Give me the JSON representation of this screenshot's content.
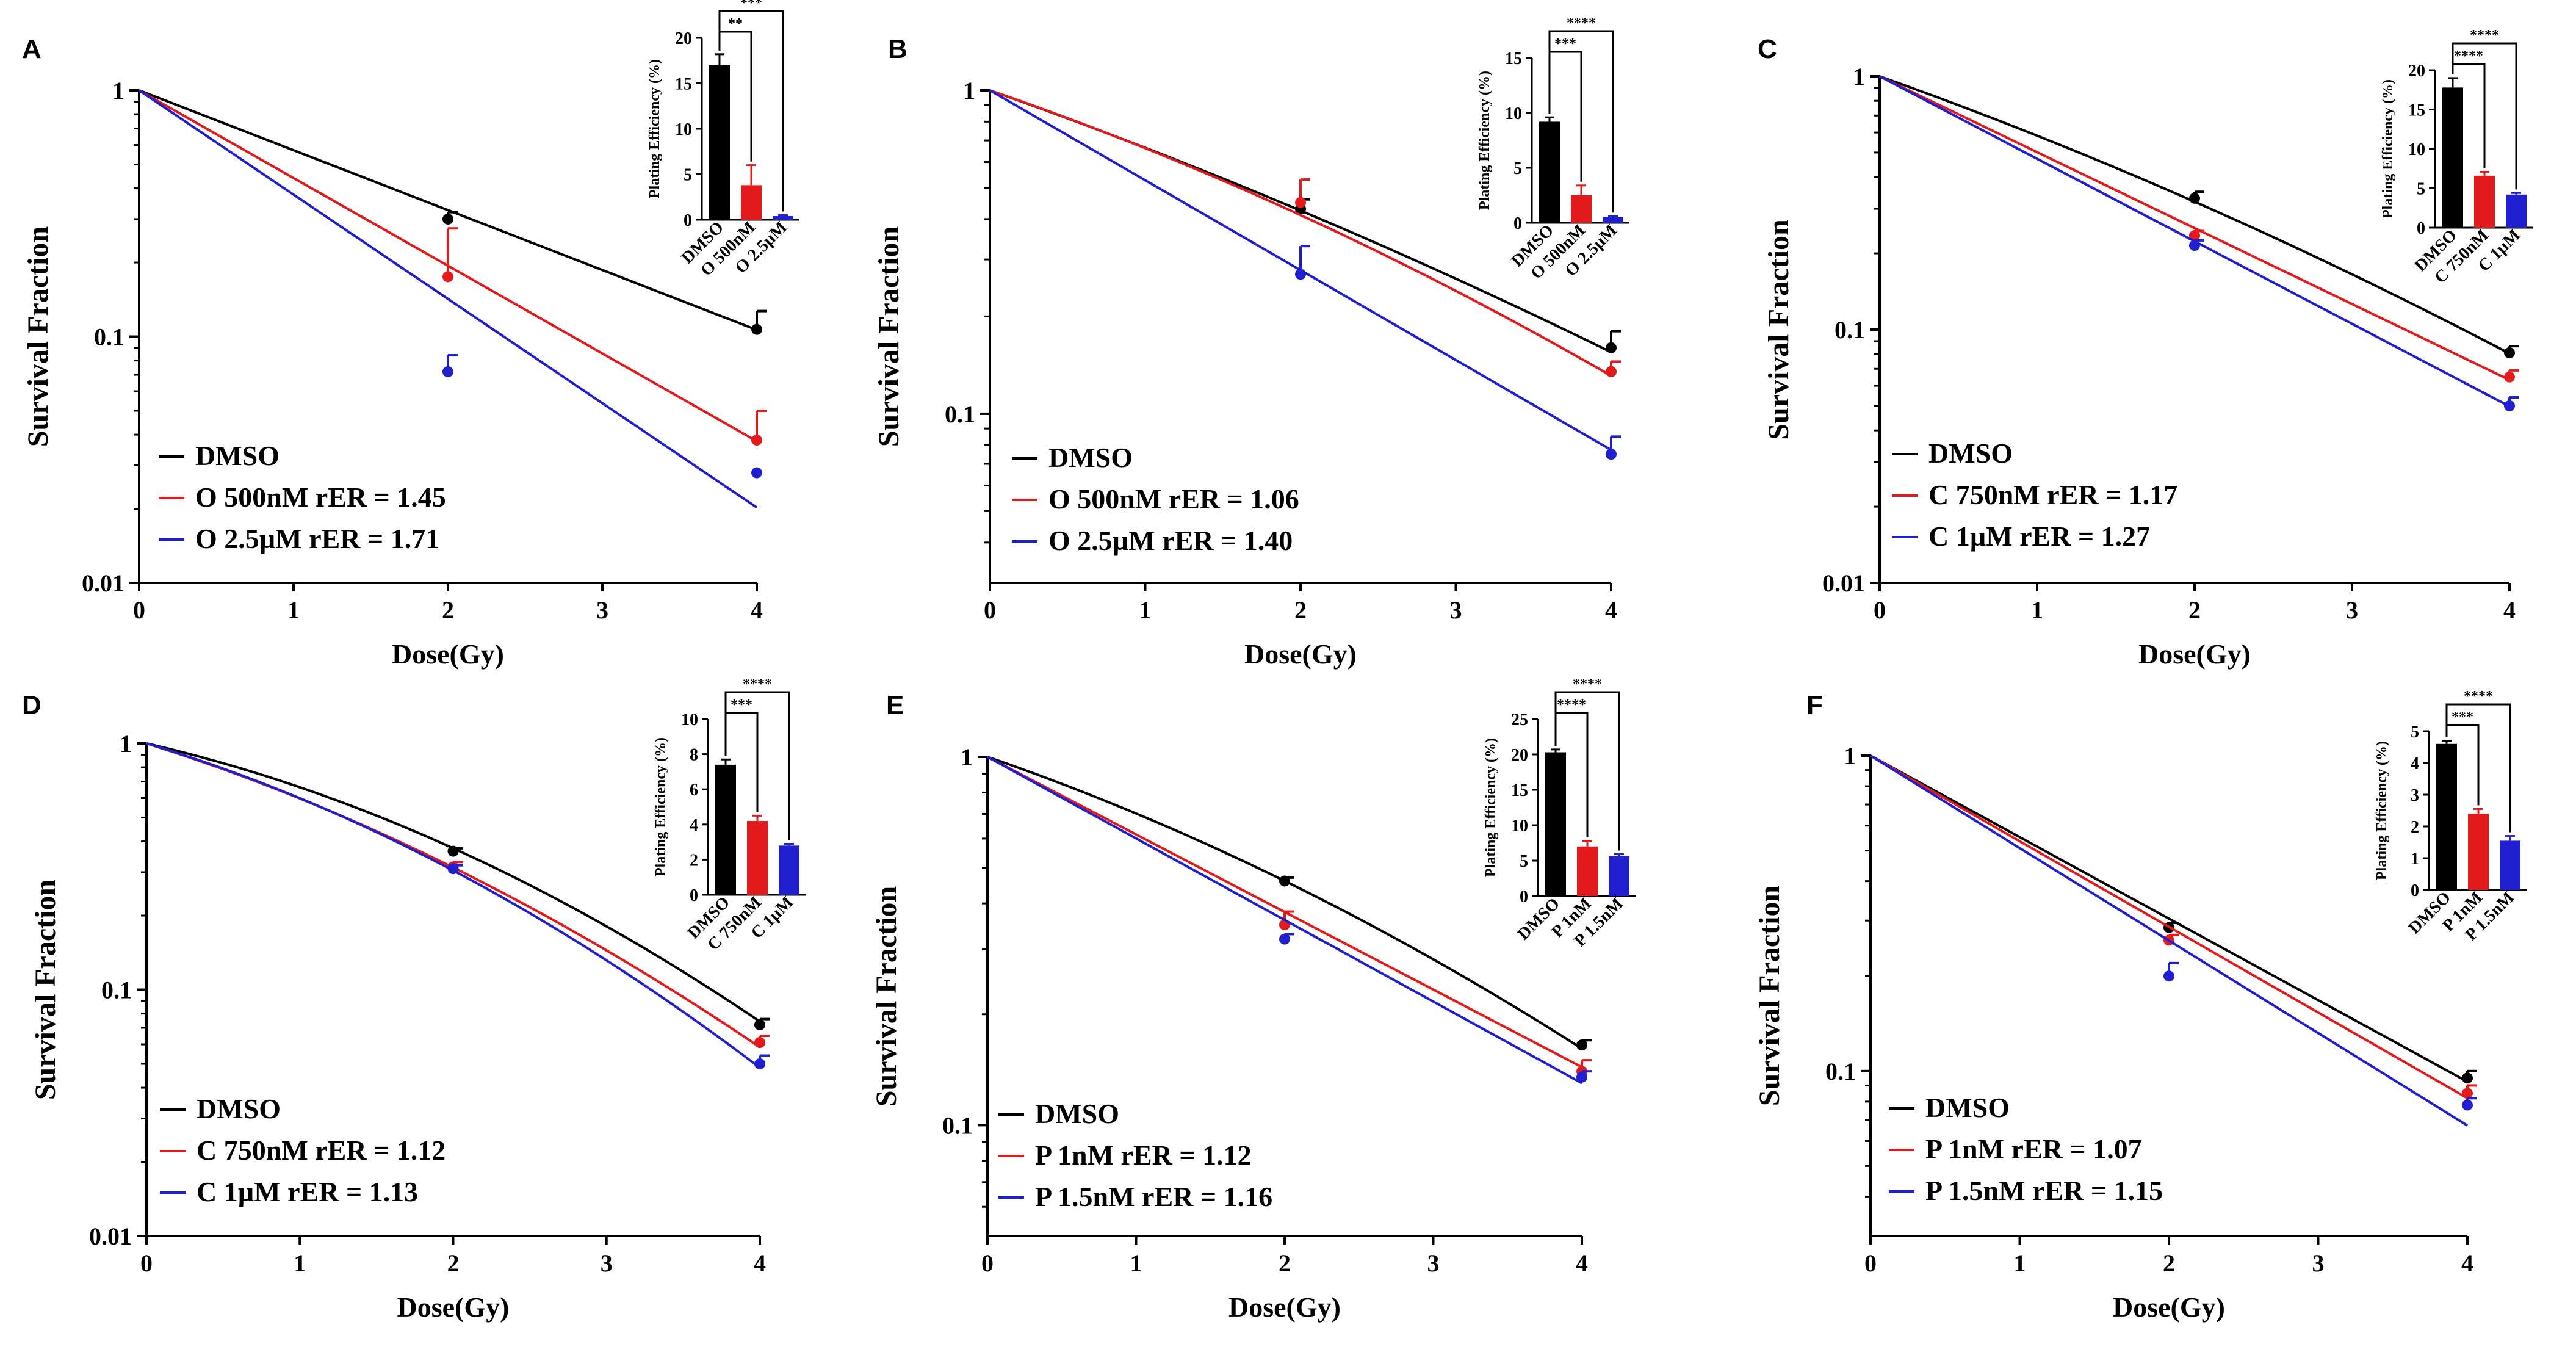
{
  "chart_data": [
    {
      "panel": "A",
      "type": "line",
      "yscale": "log",
      "xlabel": "Dose(Gy)",
      "ylabel": "Survival Fraction",
      "xlim": [
        0,
        4
      ],
      "ylim": [
        0.01,
        1
      ],
      "xticks": [
        0,
        1,
        2,
        3,
        4
      ],
      "xtick_labels": [
        "0",
        "1",
        "2",
        "3",
        "4"
      ],
      "yticks": [
        0.01,
        0.1,
        1
      ],
      "ytick_labels": [
        "0.01",
        "0.1",
        "1"
      ],
      "series": [
        {
          "name": "DMSO",
          "legend": "DMSO",
          "color": "#000000",
          "fit": {
            "alpha": 0.56,
            "beta": 0.0
          },
          "x": [
            0,
            2,
            4
          ],
          "y": [
            1,
            0.3,
            0.107
          ],
          "err": [
            0,
            0.02,
            0.02
          ]
        },
        {
          "name": "O 500nM",
          "legend": "O 500nM rER = 1.45",
          "color": "#e31a1c",
          "fit": {
            "alpha": 0.82,
            "beta": 0.0
          },
          "x": [
            0,
            2,
            4
          ],
          "y": [
            1,
            0.175,
            0.038
          ],
          "err": [
            0,
            0.1,
            0.012
          ]
        },
        {
          "name": "O 2.5µM",
          "legend": "O 2.5µM  rER = 1.71",
          "color": "#1f1fd0",
          "fit": {
            "alpha": 0.975,
            "beta": 0.0
          },
          "x": [
            0,
            2,
            4
          ],
          "y": [
            1,
            0.072,
            0.028
          ],
          "err": [
            0,
            0.012,
            0
          ]
        }
      ],
      "inset": {
        "ylabel": "Plating Efficiency (%)",
        "ylim": [
          0,
          20
        ],
        "yticks": [
          0,
          5,
          10,
          15,
          20
        ],
        "ytick_labels": [
          "0",
          "5",
          "10",
          "15",
          "20"
        ],
        "categories": [
          "DMSO",
          "O 500nM",
          "O 2.5µM"
        ],
        "values": [
          17.0,
          3.8,
          0.4
        ],
        "errors": [
          1.2,
          2.2,
          0.1
        ],
        "colors": [
          "#000000",
          "#e31a1c",
          "#1f1fd0"
        ],
        "significance": [
          {
            "from": 0,
            "to": 1,
            "label": "**"
          },
          {
            "from": 0,
            "to": 2,
            "label": "***"
          }
        ]
      }
    },
    {
      "panel": "B",
      "type": "line",
      "yscale": "log",
      "xlabel": "Dose(Gy)",
      "ylabel": "Survival Fraction",
      "xlim": [
        0,
        4
      ],
      "ylim": [
        0.03,
        1
      ],
      "xticks": [
        0,
        1,
        2,
        3,
        4
      ],
      "xtick_labels": [
        "0",
        "1",
        "2",
        "3",
        "4"
      ],
      "yticks": [
        0.1,
        1
      ],
      "ytick_labels": [
        "0.1",
        "1"
      ],
      "series": [
        {
          "name": "DMSO",
          "legend": "DMSO",
          "color": "#000000",
          "fit": {
            "alpha": 0.39,
            "beta": 0.019
          },
          "x": [
            0,
            2,
            4
          ],
          "y": [
            1,
            0.43,
            0.16
          ],
          "err": [
            0,
            0.03,
            0.02
          ]
        },
        {
          "name": "O 500nM",
          "legend": "O 500nM rER = 1.06",
          "color": "#e31a1c",
          "fit": {
            "alpha": 0.38,
            "beta": 0.032
          },
          "x": [
            0,
            2,
            4
          ],
          "y": [
            1,
            0.45,
            0.135
          ],
          "err": [
            0,
            0.08,
            0.01
          ]
        },
        {
          "name": "O 2.5µM",
          "legend": "O 2.5µM  rER = 1.40",
          "color": "#1f1fd0",
          "fit": {
            "alpha": 0.64,
            "beta": 0.0
          },
          "x": [
            0,
            2,
            4
          ],
          "y": [
            1,
            0.27,
            0.075
          ],
          "err": [
            0,
            0.06,
            0.01
          ]
        }
      ],
      "inset": {
        "ylabel": "Plating Efficiency (%)",
        "ylim": [
          0,
          15
        ],
        "yticks": [
          0,
          5,
          10,
          15
        ],
        "ytick_labels": [
          "0",
          "5",
          "10",
          "15"
        ],
        "categories": [
          "DMSO",
          "O 500nM",
          "O 2.5µM"
        ],
        "values": [
          9.2,
          2.5,
          0.5
        ],
        "errors": [
          0.4,
          0.9,
          0.1
        ],
        "colors": [
          "#000000",
          "#e31a1c",
          "#1f1fd0"
        ],
        "significance": [
          {
            "from": 0,
            "to": 1,
            "label": "***"
          },
          {
            "from": 0,
            "to": 2,
            "label": "****"
          }
        ]
      }
    },
    {
      "panel": "C",
      "type": "line",
      "yscale": "log",
      "xlabel": "Dose(Gy)",
      "ylabel": "Survival Fraction",
      "xlim": [
        0,
        4
      ],
      "ylim": [
        0.01,
        1
      ],
      "xticks": [
        0,
        1,
        2,
        3,
        4
      ],
      "xtick_labels": [
        "0",
        "1",
        "2",
        "3",
        "4"
      ],
      "yticks": [
        0.01,
        0.1,
        1
      ],
      "ytick_labels": [
        "0.01",
        "0.1",
        "1"
      ],
      "series": [
        {
          "name": "DMSO",
          "legend": "DMSO",
          "color": "#000000",
          "fit": {
            "alpha": 0.51,
            "beta": 0.03
          },
          "x": [
            0,
            2,
            4
          ],
          "y": [
            1,
            0.33,
            0.081
          ],
          "err": [
            0,
            0.02,
            0.005
          ]
        },
        {
          "name": "C 750nM",
          "legend": "C 750nM rER = 1.17",
          "color": "#e31a1c",
          "fit": {
            "alpha": 0.69,
            "beta": 0.0
          },
          "x": [
            0,
            2,
            4
          ],
          "y": [
            1,
            0.235,
            0.065
          ],
          "err": [
            0,
            0.01,
            0.004
          ]
        },
        {
          "name": "C 1µM",
          "legend": "C 1µM  rER = 1.27",
          "color": "#1f1fd0",
          "fit": {
            "alpha": 0.75,
            "beta": 0.0
          },
          "x": [
            0,
            2,
            4
          ],
          "y": [
            1,
            0.215,
            0.05
          ],
          "err": [
            0,
            0.01,
            0.004
          ]
        }
      ],
      "inset": {
        "ylabel": "Plating Efficiency (%)",
        "ylim": [
          0,
          20
        ],
        "yticks": [
          0,
          5,
          10,
          15,
          20
        ],
        "ytick_labels": [
          "0",
          "5",
          "10",
          "15",
          "20"
        ],
        "categories": [
          "DMSO",
          "C 750nM",
          "C 1µM"
        ],
        "values": [
          17.8,
          6.6,
          4.2
        ],
        "errors": [
          1.2,
          0.5,
          0.2
        ],
        "colors": [
          "#000000",
          "#e31a1c",
          "#1f1fd0"
        ],
        "significance": [
          {
            "from": 0,
            "to": 1,
            "label": "****"
          },
          {
            "from": 0,
            "to": 2,
            "label": "****"
          }
        ]
      }
    },
    {
      "panel": "D",
      "type": "line",
      "yscale": "log",
      "xlabel": "Dose(Gy)",
      "ylabel": "Survival Fraction",
      "xlim": [
        0,
        4
      ],
      "ylim": [
        0.01,
        1
      ],
      "xticks": [
        0,
        1,
        2,
        3,
        4
      ],
      "xtick_labels": [
        "0",
        "1",
        "2",
        "3",
        "4"
      ],
      "yticks": [
        0.01,
        0.1,
        1
      ],
      "ytick_labels": [
        "0.01",
        "0.1",
        "1"
      ],
      "series": [
        {
          "name": "DMSO",
          "legend": "DMSO",
          "color": "#000000",
          "fit": {
            "alpha": 0.33,
            "beta": 0.08
          },
          "x": [
            0,
            2,
            4
          ],
          "y": [
            1,
            0.365,
            0.072
          ],
          "err": [
            0,
            0.01,
            0.004
          ]
        },
        {
          "name": "C 750nM",
          "legend": "C 750nM rER = 1.12",
          "color": "#e31a1c",
          "fit": {
            "alpha": 0.45,
            "beta": 0.065
          },
          "x": [
            0,
            2,
            4
          ],
          "y": [
            1,
            0.315,
            0.061
          ],
          "err": [
            0,
            0.015,
            0.004
          ]
        },
        {
          "name": "C 1µM",
          "legend": "C 1µM  rER = 1.13",
          "color": "#1f1fd0",
          "fit": {
            "alpha": 0.43,
            "beta": 0.082
          },
          "x": [
            0,
            2,
            4
          ],
          "y": [
            1,
            0.31,
            0.05
          ],
          "err": [
            0,
            0.01,
            0.004
          ]
        }
      ],
      "inset": {
        "ylabel": "Plating Efficiency (%)",
        "ylim": [
          0,
          10
        ],
        "yticks": [
          0,
          2,
          4,
          6,
          8,
          10
        ],
        "ytick_labels": [
          "0",
          "2",
          "4",
          "6",
          "8",
          "10"
        ],
        "categories": [
          "DMSO",
          "C 750nM",
          "C 1µM"
        ],
        "values": [
          7.4,
          4.2,
          2.8
        ],
        "errors": [
          0.3,
          0.3,
          0.1
        ],
        "colors": [
          "#000000",
          "#e31a1c",
          "#1f1fd0"
        ],
        "significance": [
          {
            "from": 0,
            "to": 1,
            "label": "***"
          },
          {
            "from": 0,
            "to": 2,
            "label": "****"
          }
        ]
      }
    },
    {
      "panel": "E",
      "type": "line",
      "yscale": "log",
      "xlabel": "Dose(Gy)",
      "ylabel": "Survival Fraction",
      "xlim": [
        0,
        4
      ],
      "ylim": [
        0.05,
        1
      ],
      "xticks": [
        0,
        1,
        2,
        3,
        4
      ],
      "xtick_labels": [
        "0",
        "1",
        "2",
        "3",
        "4"
      ],
      "yticks": [
        0.1,
        1
      ],
      "ytick_labels": [
        "0.1",
        "1"
      ],
      "series": [
        {
          "name": "DMSO",
          "legend": "DMSO",
          "color": "#000000",
          "fit": {
            "alpha": 0.32,
            "beta": 0.034
          },
          "x": [
            0,
            2,
            4
          ],
          "y": [
            1,
            0.46,
            0.165
          ],
          "err": [
            0,
            0.01,
            0.005
          ]
        },
        {
          "name": "P 1nM",
          "legend": "P 1nM rER = 1.12",
          "color": "#e31a1c",
          "fit": {
            "alpha": 0.485,
            "beta": 0.0
          },
          "x": [
            0,
            2,
            4
          ],
          "y": [
            1,
            0.35,
            0.14
          ],
          "err": [
            0,
            0.03,
            0.01
          ]
        },
        {
          "name": "P 1.5nM",
          "legend": "P 1.5nM  rER = 1.16",
          "color": "#1f1fd0",
          "fit": {
            "alpha": 0.51,
            "beta": 0.0
          },
          "x": [
            0,
            2,
            4
          ],
          "y": [
            1,
            0.32,
            0.135
          ],
          "err": [
            0,
            0.01,
            0.005
          ]
        }
      ],
      "inset": {
        "ylabel": "Plating Efficiency (%)",
        "ylim": [
          0,
          25
        ],
        "yticks": [
          0,
          5,
          10,
          15,
          20,
          25
        ],
        "ytick_labels": [
          "0",
          "5",
          "10",
          "15",
          "20",
          "25"
        ],
        "categories": [
          "DMSO",
          "P 1nM",
          "P 1.5nM"
        ],
        "values": [
          20.3,
          7.0,
          5.6
        ],
        "errors": [
          0.4,
          0.8,
          0.3
        ],
        "colors": [
          "#000000",
          "#e31a1c",
          "#1f1fd0"
        ],
        "significance": [
          {
            "from": 0,
            "to": 1,
            "label": "****"
          },
          {
            "from": 0,
            "to": 2,
            "label": "****"
          }
        ]
      }
    },
    {
      "panel": "F",
      "type": "line",
      "yscale": "log",
      "xlabel": "Dose(Gy)",
      "ylabel": "Survival Fraction",
      "xlim": [
        0,
        4
      ],
      "ylim": [
        0.03,
        1
      ],
      "xticks": [
        0,
        1,
        2,
        3,
        4
      ],
      "xtick_labels": [
        "0",
        "1",
        "2",
        "3",
        "4"
      ],
      "yticks": [
        0.1,
        1
      ],
      "ytick_labels": [
        "0.1",
        "1"
      ],
      "series": [
        {
          "name": "DMSO",
          "legend": "DMSO",
          "color": "#000000",
          "fit": {
            "alpha": 0.595,
            "beta": 0.0
          },
          "x": [
            0,
            2,
            4
          ],
          "y": [
            1,
            0.285,
            0.095
          ],
          "err": [
            0,
            0.01,
            0.005
          ]
        },
        {
          "name": "P 1nM",
          "legend": "P 1nM rER = 1.07",
          "color": "#e31a1c",
          "fit": {
            "alpha": 0.625,
            "beta": 0.0
          },
          "x": [
            0,
            2,
            4
          ],
          "y": [
            1,
            0.26,
            0.085
          ],
          "err": [
            0,
            0.01,
            0.005
          ]
        },
        {
          "name": "P 1.5nM",
          "legend": "P 1.5nM  rER = 1.15",
          "color": "#1f1fd0",
          "fit": {
            "alpha": 0.675,
            "beta": 0.0
          },
          "x": [
            0,
            2,
            4
          ],
          "y": [
            1,
            0.2,
            0.078
          ],
          "err": [
            0,
            0.02,
            0.004
          ]
        }
      ],
      "inset": {
        "ylabel": "Plating Efficiency (%)",
        "ylim": [
          0,
          5
        ],
        "yticks": [
          0,
          1,
          2,
          3,
          4,
          5
        ],
        "ytick_labels": [
          "0",
          "1",
          "2",
          "3",
          "4",
          "5"
        ],
        "categories": [
          "DMSO",
          "P 1nM",
          "P 1.5nM"
        ],
        "values": [
          4.6,
          2.4,
          1.55
        ],
        "errors": [
          0.1,
          0.15,
          0.15
        ],
        "colors": [
          "#000000",
          "#e31a1c",
          "#1f1fd0"
        ],
        "significance": [
          {
            "from": 0,
            "to": 1,
            "label": "***"
          },
          {
            "from": 0,
            "to": 2,
            "label": "****"
          }
        ]
      }
    }
  ]
}
